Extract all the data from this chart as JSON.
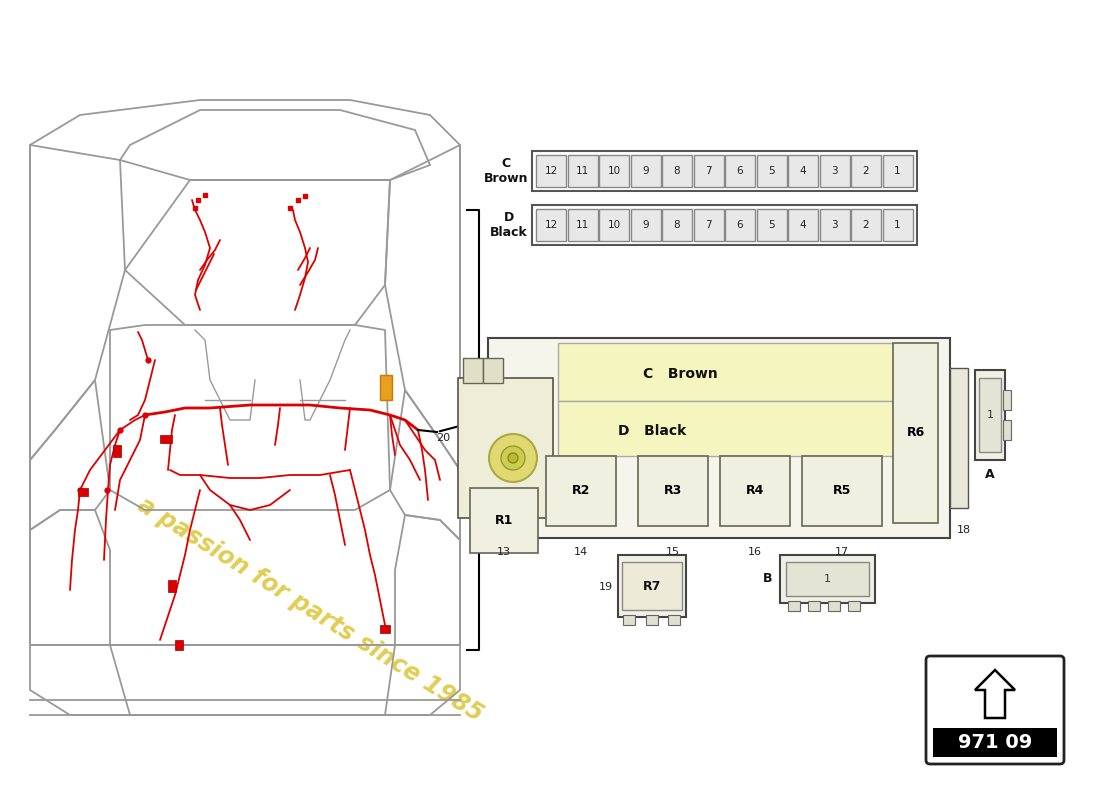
{
  "bg_color": "#ffffff",
  "title": "971 09",
  "fuse_row_C_label": "C\nBrown",
  "fuse_row_D_label": "D\nBlack",
  "fuse_count": 12,
  "watermark_text": "a passion for parts since 1985",
  "watermark_color": "#ddc840",
  "line_color": "#333333",
  "fuse_border_color": "#555555",
  "car_line_color": "#999999",
  "wiring_color": "#dd0000",
  "relay_box_fill": "#f0f0e0",
  "main_box_fill": "#f5f5ec",
  "yellow_section_fill": "#f5f5c0",
  "arrow_box_bg": "#000000",
  "arrow_fill": "#ffffff",
  "connector_A_label": "A",
  "connector_B_label": "B"
}
